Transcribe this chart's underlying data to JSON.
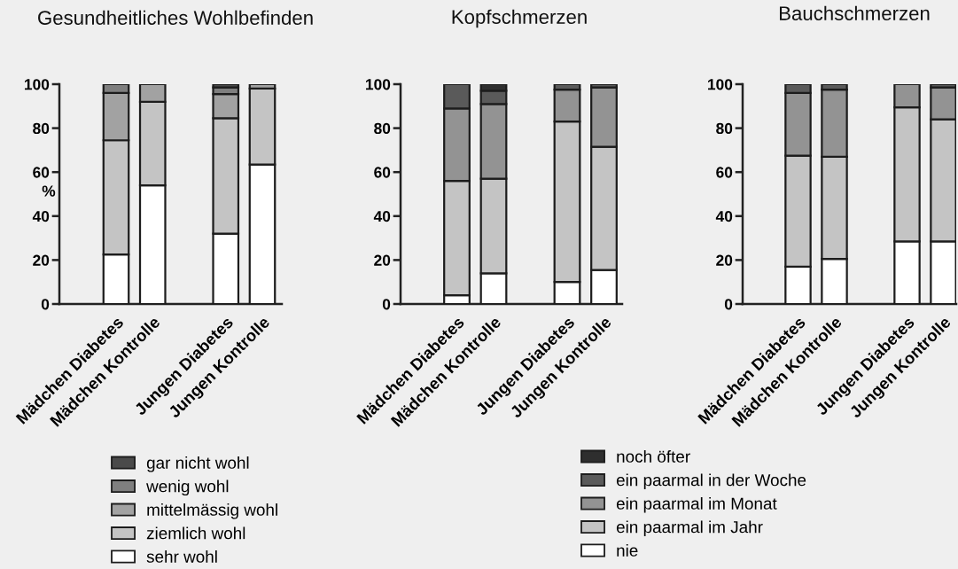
{
  "chart_data": [
    {
      "type": "bar",
      "stacked": true,
      "title": "Gesundheitliches Wohlbefinden",
      "ylabel": "%",
      "categories": [
        "Mädchen Diabetes",
        "Mädchen Kontrolle",
        null,
        "Jungen Diabetes",
        "Jungen Kontrolle"
      ],
      "series": [
        {
          "name": "sehr wohl",
          "color": "#ffffff",
          "values": [
            22.5,
            54,
            null,
            32,
            63.5
          ]
        },
        {
          "name": "ziemlich wohl",
          "color": "#c4c4c4",
          "values": [
            52,
            38,
            null,
            52.5,
            34.5
          ]
        },
        {
          "name": "mittelmässig wohl",
          "color": "#a2a2a2",
          "values": [
            21.5,
            8,
            null,
            11,
            2
          ]
        },
        {
          "name": "wenig wohl",
          "color": "#7f7f7f",
          "values": [
            4,
            null,
            null,
            3,
            null
          ]
        },
        {
          "name": "gar nicht wohl",
          "color": "#4a4a4a",
          "values": [
            null,
            null,
            null,
            1.5,
            null
          ]
        }
      ],
      "ylim": [
        0,
        100
      ],
      "yticks": [
        0,
        20,
        40,
        60,
        80,
        100
      ],
      "legend": "bottom"
    },
    {
      "type": "bar",
      "stacked": true,
      "title": "Kopfschmerzen",
      "categories": [
        "Mädchen Diabetes",
        "Mädchen Kontrolle",
        null,
        "Jungen Diabetes",
        "Jungen Kontrolle"
      ],
      "series": [
        {
          "name": "nie",
          "color": "#ffffff",
          "values": [
            4,
            14,
            null,
            10,
            15.5
          ]
        },
        {
          "name": "ein paarmal im Jahr",
          "color": "#c4c4c4",
          "values": [
            52,
            43,
            null,
            73,
            56
          ]
        },
        {
          "name": "ein paarmal im Monat",
          "color": "#939393",
          "values": [
            33,
            34,
            null,
            14.5,
            27
          ]
        },
        {
          "name": "ein paarmal in der Woche",
          "color": "#5a5a5a",
          "values": [
            11,
            6,
            null,
            2.5,
            1.5
          ]
        },
        {
          "name": "noch öfter",
          "color": "#2e2e2e",
          "values": [
            null,
            3,
            null,
            null,
            null
          ]
        }
      ],
      "ylim": [
        0,
        100
      ],
      "yticks": [
        0,
        20,
        40,
        60,
        80,
        100
      ],
      "legend": "bottom right"
    },
    {
      "type": "bar",
      "stacked": true,
      "title": "Bauchschmerzen",
      "categories": [
        "Mädchen Diabetes",
        "Mädchen Kontrolle",
        null,
        "Jungen Diabetes",
        "Jungen Kontrolle"
      ],
      "series": [
        {
          "color": "#ffffff",
          "values": [
            17,
            20.5,
            null,
            28.5,
            28.5
          ]
        },
        {
          "color": "#c4c4c4",
          "values": [
            50.5,
            46.5,
            null,
            61,
            55.5
          ]
        },
        {
          "color": "#939393",
          "values": [
            28.5,
            30.5,
            null,
            10.5,
            14.5
          ]
        },
        {
          "color": "#5a5a5a",
          "values": [
            4,
            2.5,
            null,
            null,
            1.5
          ]
        }
      ],
      "ylim": [
        0,
        100
      ],
      "yticks": [
        0,
        20,
        40,
        60,
        80,
        100
      ]
    }
  ]
}
